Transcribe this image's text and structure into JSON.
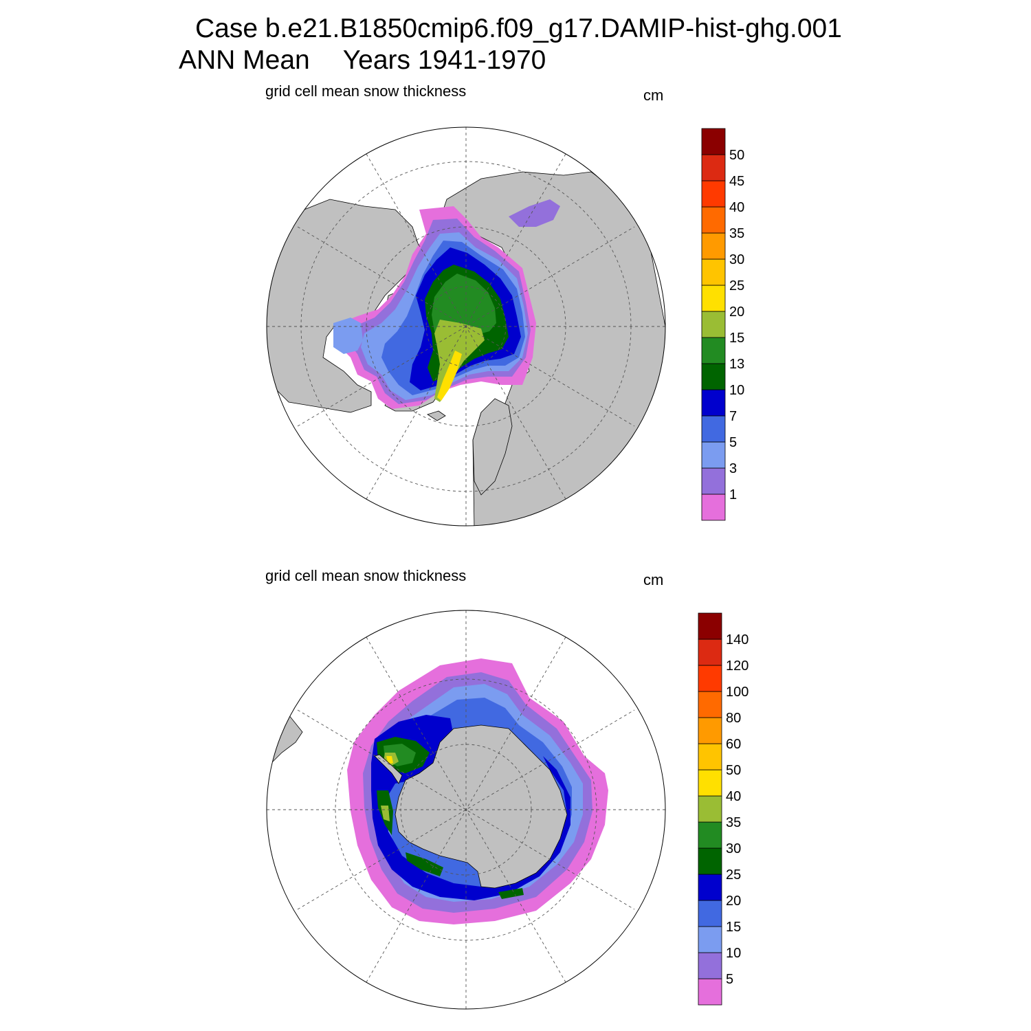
{
  "title": {
    "case": "Case b.e21.B1850cmip6.f09_g17.DAMIP-hist-ghg.001",
    "period": "ANN Mean",
    "years": "Years 1941-1970"
  },
  "colors": {
    "land": "#c0c0c0",
    "ocean": "#ffffff",
    "graticule": "#555555"
  },
  "panels": [
    {
      "hemisphere": "north",
      "label": "grid cell mean snow thickness",
      "unit": "cm",
      "colorbar": {
        "levels": [
          "1",
          "3",
          "5",
          "7",
          "10",
          "13",
          "15",
          "20",
          "25",
          "30",
          "35",
          "40",
          "45",
          "50"
        ],
        "colors": [
          "#e56fdc",
          "#9370db",
          "#7b9cf0",
          "#4169e1",
          "#0000cd",
          "#006400",
          "#228b22",
          "#9abd34",
          "#ffe000",
          "#ffc400",
          "#ff9a00",
          "#ff6a00",
          "#ff3a00",
          "#dc2a12",
          "#8b0000"
        ]
      }
    },
    {
      "hemisphere": "south",
      "label": "grid cell mean snow thickness",
      "unit": "cm",
      "colorbar": {
        "levels": [
          "5",
          "10",
          "15",
          "20",
          "25",
          "30",
          "35",
          "40",
          "50",
          "60",
          "80",
          "100",
          "120",
          "140"
        ],
        "colors": [
          "#e56fdc",
          "#9370db",
          "#7b9cf0",
          "#4169e1",
          "#0000cd",
          "#006400",
          "#228b22",
          "#9abd34",
          "#ffe000",
          "#ffc400",
          "#ff9a00",
          "#ff6a00",
          "#ff3a00",
          "#dc2a12",
          "#8b0000"
        ]
      }
    }
  ]
}
